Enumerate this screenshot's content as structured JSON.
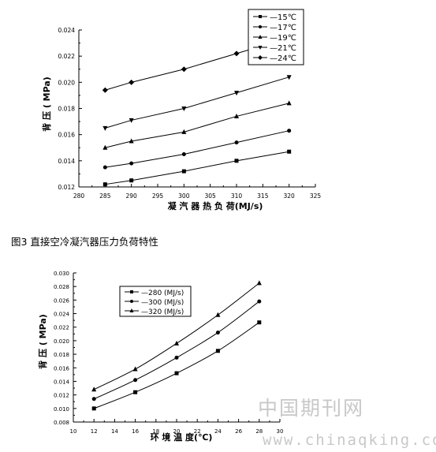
{
  "caption": "图3 直接空冷凝汽器压力负荷特性",
  "watermark": {
    "cn": "中国期刊网",
    "url": "www.chinaqking.com"
  },
  "chart_data": [
    {
      "type": "line",
      "xlabel": "凝 汽 器 热 负 荷(MJ/s)",
      "ylabel": "背 压 ( MPa)",
      "xlim": [
        280,
        325
      ],
      "ylim": [
        0.012,
        0.024
      ],
      "xticks": [
        "280",
        "285",
        "290",
        "295",
        "300",
        "305",
        "310",
        "315",
        "320",
        "325"
      ],
      "yticks": [
        "0.012",
        "0.014",
        "0.016",
        "0.018",
        "0.020",
        "0.022",
        "0.024"
      ],
      "x": [
        285,
        290,
        300,
        310,
        320
      ],
      "legend_position": "top-right",
      "series": [
        {
          "name": "15℃",
          "marker": "square",
          "values": [
            0.0122,
            0.0125,
            0.0132,
            0.014,
            0.0147
          ]
        },
        {
          "name": "17℃",
          "marker": "circle",
          "values": [
            0.0135,
            0.0138,
            0.0145,
            0.0154,
            0.0163
          ]
        },
        {
          "name": "19℃",
          "marker": "triangle",
          "values": [
            0.015,
            0.0155,
            0.0162,
            0.0174,
            0.0184
          ]
        },
        {
          "name": "21℃",
          "marker": "triangle-down",
          "values": [
            0.0165,
            0.0171,
            0.018,
            0.0192,
            0.0204
          ]
        },
        {
          "name": "24℃",
          "marker": "diamond",
          "values": [
            0.0194,
            0.02,
            0.021,
            0.0222,
            0.0234
          ]
        }
      ]
    },
    {
      "type": "line",
      "xlabel": "环 境 温 度(℃)",
      "ylabel": "背 压 ( MPa)",
      "xlim": [
        10,
        30
      ],
      "ylim": [
        0.008,
        0.03
      ],
      "xticks": [
        "10",
        "12",
        "14",
        "16",
        "18",
        "20",
        "22",
        "24",
        "26",
        "28",
        "30"
      ],
      "yticks": [
        "0.008",
        "0.010",
        "0.012",
        "0.014",
        "0.016",
        "0.018",
        "0.020",
        "0.022",
        "0.024",
        "0.026",
        "0.028",
        "0.030"
      ],
      "x": [
        12,
        16,
        20,
        24,
        28
      ],
      "legend_position": "top-left",
      "series": [
        {
          "name": "280 (MJ/s)",
          "marker": "square",
          "values": [
            0.01,
            0.0124,
            0.0152,
            0.0185,
            0.0227
          ]
        },
        {
          "name": "300 (MJ/s)",
          "marker": "circle",
          "values": [
            0.0114,
            0.0142,
            0.0175,
            0.0212,
            0.0258
          ]
        },
        {
          "name": "320 (MJ/s)",
          "marker": "triangle",
          "values": [
            0.0128,
            0.0158,
            0.0196,
            0.0238,
            0.0285
          ]
        }
      ]
    }
  ]
}
